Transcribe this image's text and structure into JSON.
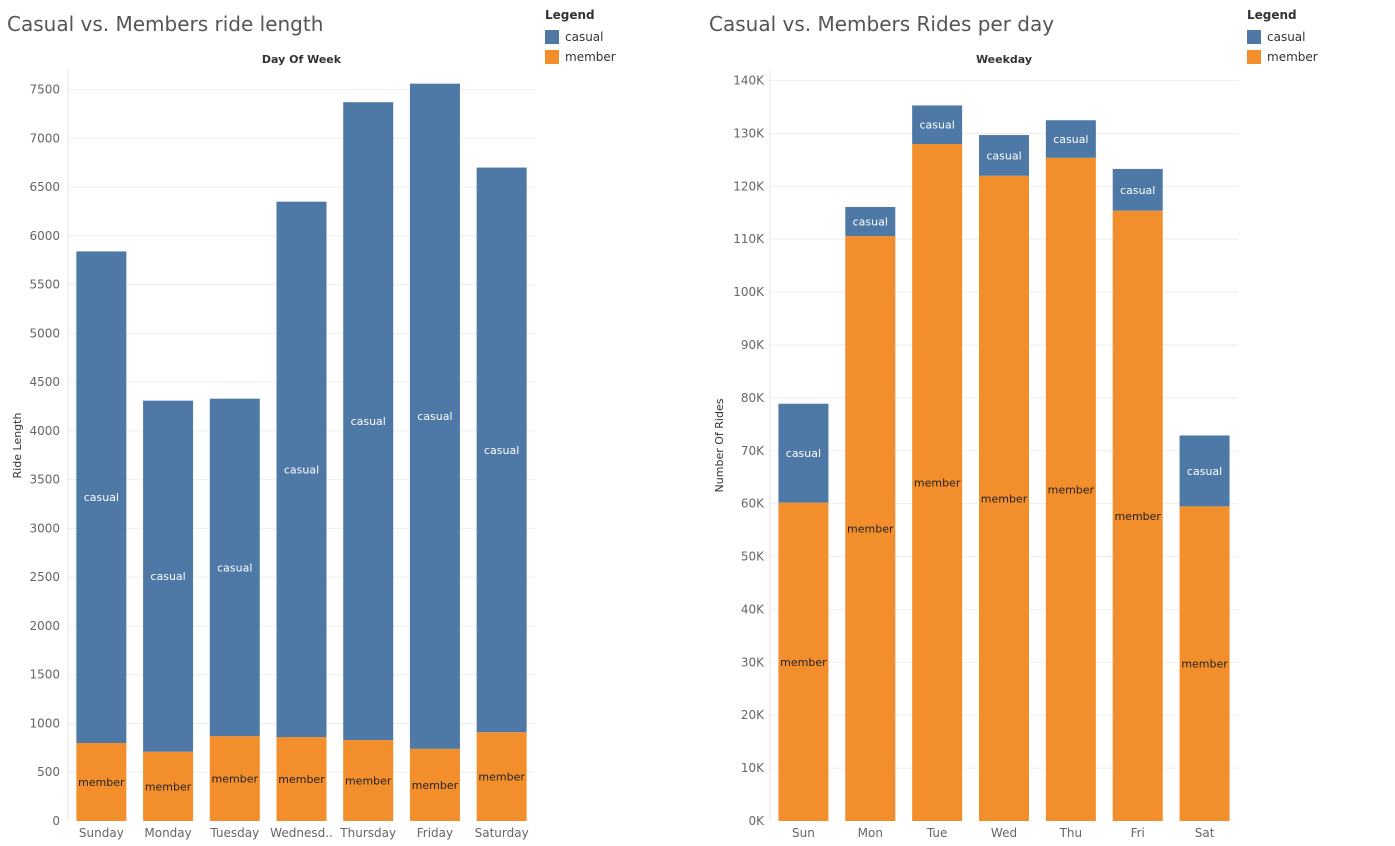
{
  "colors": {
    "casual": "#4e79a7",
    "member": "#f28e2b",
    "grid": "#eeeeee",
    "axis_text": "#666666"
  },
  "legend": {
    "title": "Legend",
    "items": [
      "casual",
      "member"
    ]
  },
  "chart_data": [
    {
      "type": "bar",
      "stacked": true,
      "title": "Casual vs. Members ride length",
      "header": "Day Of Week",
      "xlabel": "",
      "ylabel": "Ride Length",
      "ylim": [
        0,
        7700
      ],
      "yticks": [
        0,
        500,
        1000,
        1500,
        2000,
        2500,
        3000,
        3500,
        4000,
        4500,
        5000,
        5500,
        6000,
        6500,
        7000,
        7500
      ],
      "ytick_labels": [
        "0",
        "500",
        "1000",
        "1500",
        "2000",
        "2500",
        "3000",
        "3500",
        "4000",
        "4500",
        "5000",
        "5500",
        "6000",
        "6500",
        "7000",
        "7500"
      ],
      "categories": [
        "Sunday",
        "Monday",
        "Tuesday",
        "Wednesd..",
        "Thursday",
        "Friday",
        "Saturday"
      ],
      "series": [
        {
          "name": "member",
          "values": [
            800,
            710,
            870,
            860,
            830,
            740,
            910
          ]
        },
        {
          "name": "casual",
          "values": [
            5040,
            3600,
            3460,
            5490,
            6540,
            6820,
            5790
          ]
        }
      ]
    },
    {
      "type": "bar",
      "stacked": true,
      "title": "Casual vs. Members Rides per day",
      "header": "Weekday",
      "xlabel": "",
      "ylabel": "Number Of Rides",
      "ylim": [
        0,
        142000
      ],
      "yticks": [
        0,
        10000,
        20000,
        30000,
        40000,
        50000,
        60000,
        70000,
        80000,
        90000,
        100000,
        110000,
        120000,
        130000,
        140000
      ],
      "ytick_labels": [
        "0K",
        "10K",
        "20K",
        "30K",
        "40K",
        "50K",
        "60K",
        "70K",
        "80K",
        "90K",
        "100K",
        "110K",
        "120K",
        "130K",
        "140K"
      ],
      "categories": [
        "Sun",
        "Mon",
        "Tue",
        "Wed",
        "Thu",
        "Fri",
        "Sat"
      ],
      "series": [
        {
          "name": "member",
          "values": [
            60200,
            110600,
            128000,
            122000,
            125400,
            115400,
            59500
          ]
        },
        {
          "name": "casual",
          "values": [
            18700,
            5500,
            7300,
            7700,
            7100,
            7900,
            13400
          ]
        }
      ]
    }
  ]
}
